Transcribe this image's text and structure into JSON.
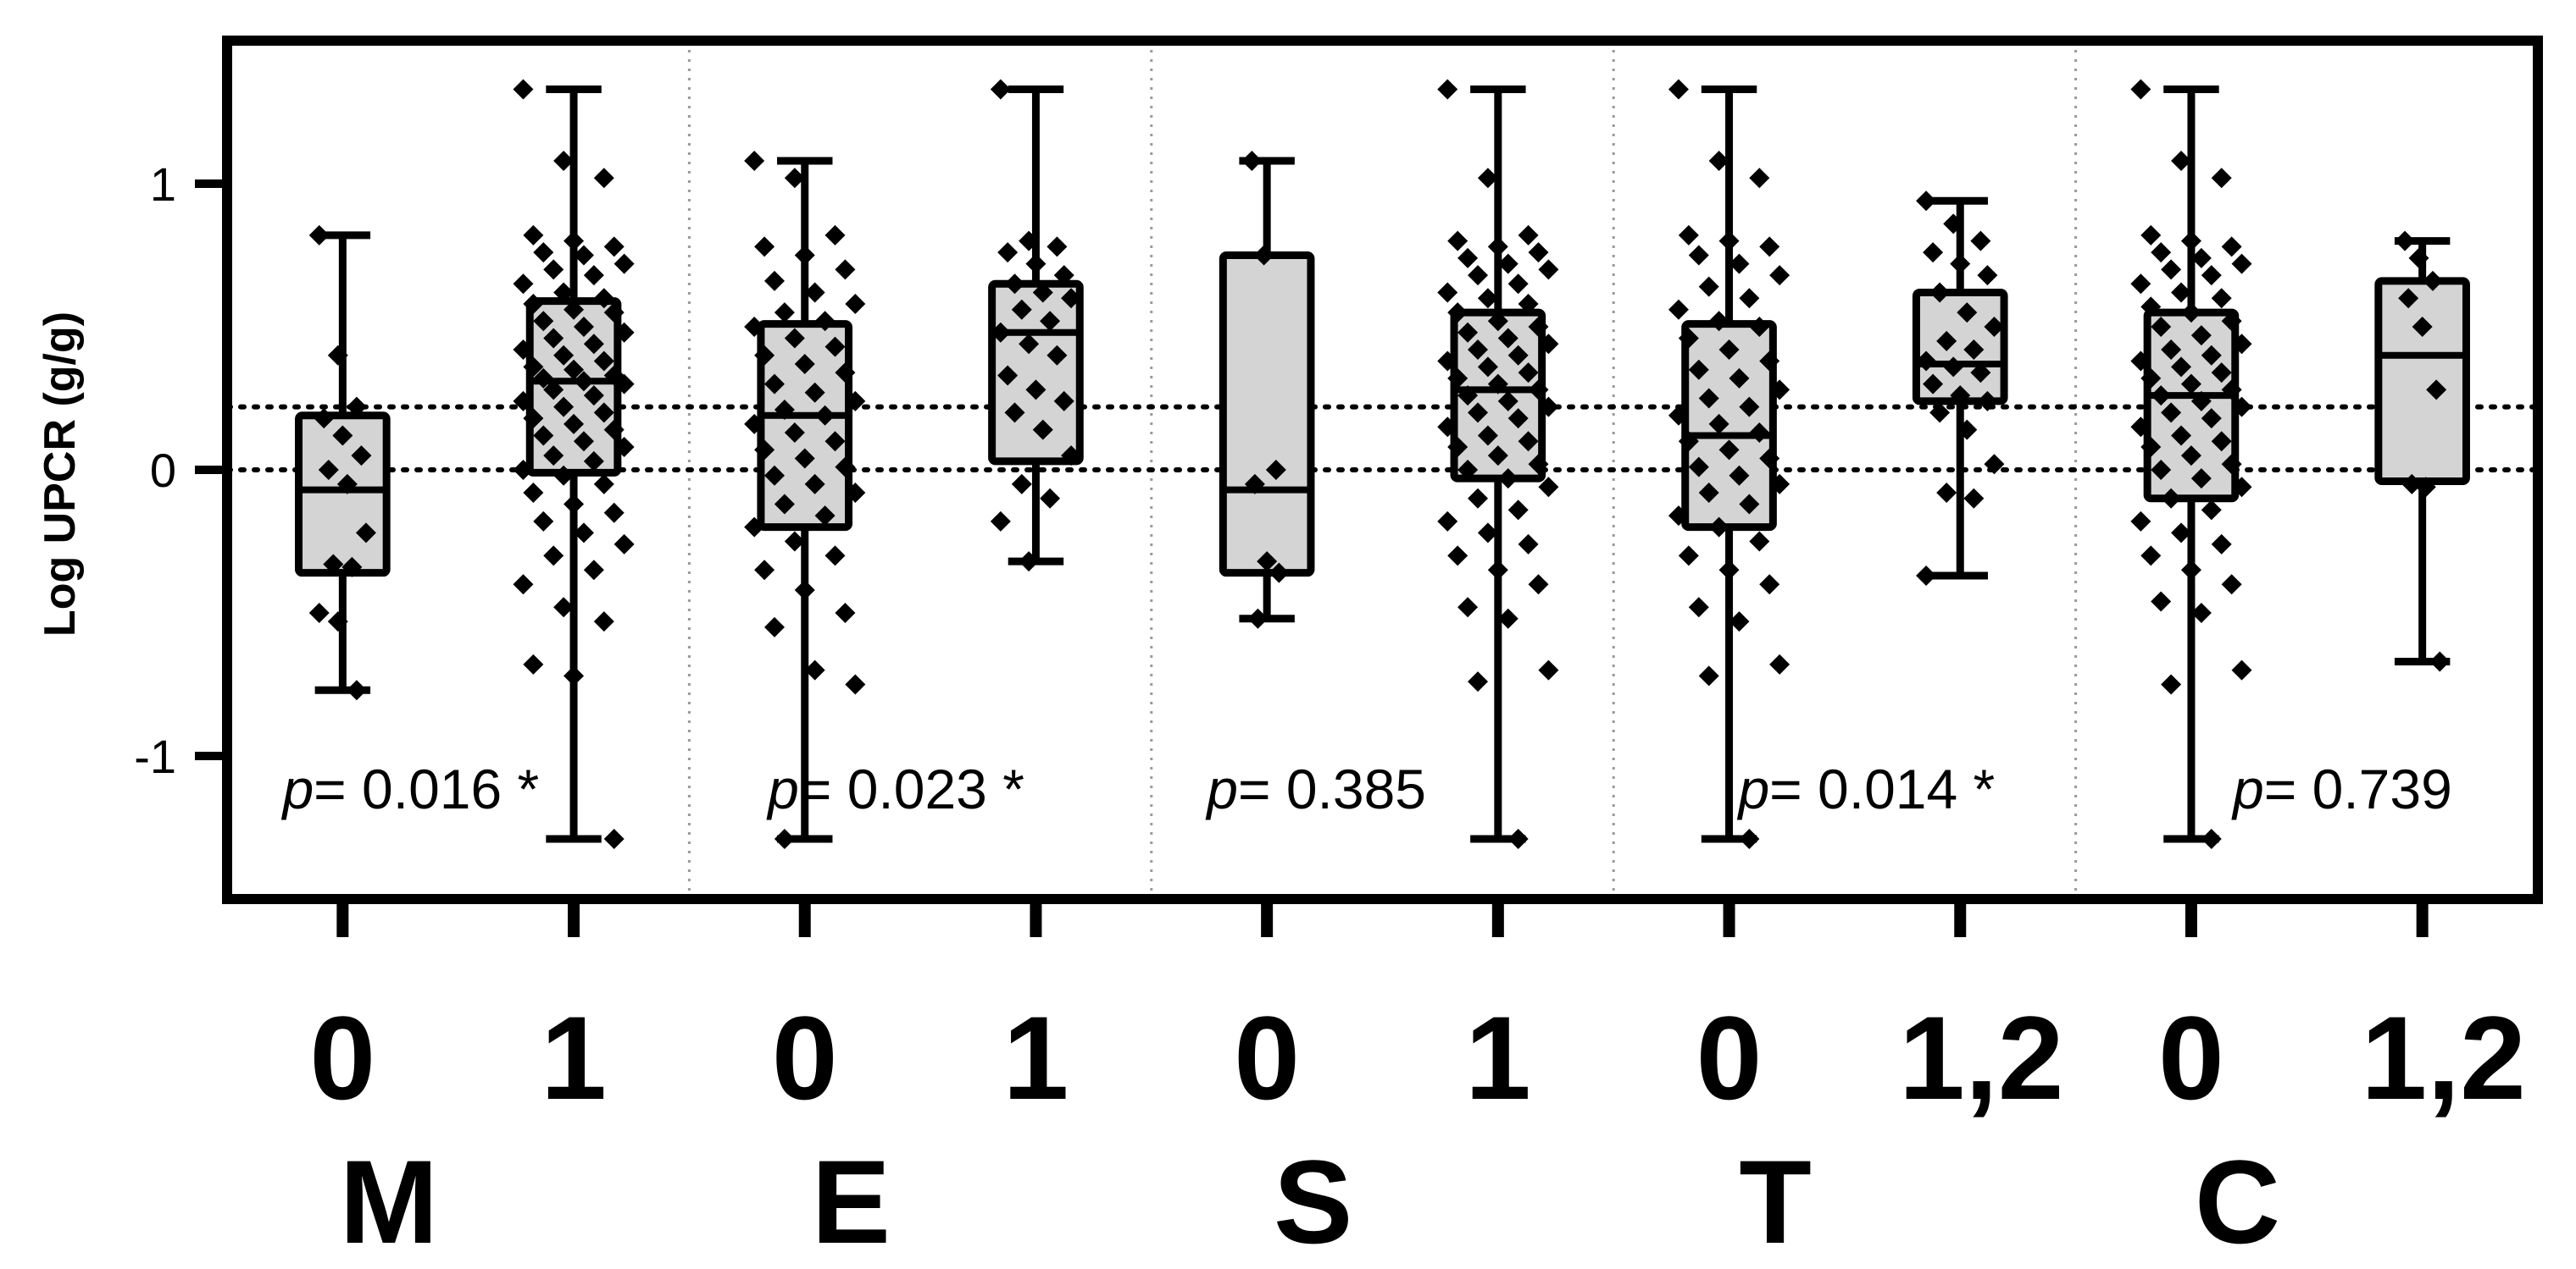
{
  "chart_data": {
    "type": "box",
    "ylabel": "Log UPCR (g/g)",
    "ylim": [
      -1.5,
      1.5
    ],
    "yticks": [
      -1,
      0,
      1
    ],
    "ytick_labels": [
      "-1",
      "0",
      "1"
    ],
    "reference_lines": [
      0,
      0.22
    ],
    "groups": [
      {
        "name": "M",
        "pvalue": "= 0.016 *",
        "boxes": [
          {
            "label": "0",
            "whisker_low": -0.77,
            "q1": -0.36,
            "median": -0.07,
            "q3": 0.19,
            "whisker_high": 0.82,
            "points": [
              0.82,
              0.4,
              0.22,
              0.18,
              0.12,
              0.05,
              0.0,
              -0.05,
              -0.22,
              -0.33,
              -0.34,
              -0.5,
              -0.53,
              -0.77
            ]
          },
          {
            "label": "1",
            "whisker_low": -1.29,
            "q1": -0.01,
            "median": 0.31,
            "q3": 0.59,
            "whisker_high": 1.33,
            "points": [
              1.33,
              1.08,
              1.02,
              0.82,
              0.8,
              0.78,
              0.76,
              0.75,
              0.72,
              0.7,
              0.68,
              0.65,
              0.62,
              0.6,
              0.58,
              0.56,
              0.55,
              0.52,
              0.5,
              0.48,
              0.46,
              0.44,
              0.42,
              0.4,
              0.38,
              0.36,
              0.35,
              0.33,
              0.32,
              0.31,
              0.3,
              0.28,
              0.26,
              0.24,
              0.22,
              0.2,
              0.18,
              0.16,
              0.14,
              0.12,
              0.1,
              0.08,
              0.05,
              0.03,
              0.0,
              -0.02,
              -0.05,
              -0.08,
              -0.12,
              -0.15,
              -0.18,
              -0.22,
              -0.26,
              -0.3,
              -0.35,
              -0.4,
              -0.48,
              -0.53,
              -0.68,
              -0.72,
              -1.29
            ]
          }
        ]
      },
      {
        "name": "E",
        "pvalue": "= 0.023 *",
        "boxes": [
          {
            "label": "0",
            "whisker_low": -1.29,
            "q1": -0.2,
            "median": 0.19,
            "q3": 0.51,
            "whisker_high": 1.08,
            "points": [
              1.08,
              1.02,
              0.82,
              0.78,
              0.75,
              0.7,
              0.66,
              0.62,
              0.58,
              0.55,
              0.52,
              0.5,
              0.46,
              0.43,
              0.4,
              0.37,
              0.34,
              0.3,
              0.27,
              0.24,
              0.21,
              0.19,
              0.16,
              0.13,
              0.1,
              0.07,
              0.04,
              0.01,
              -0.02,
              -0.05,
              -0.08,
              -0.12,
              -0.16,
              -0.2,
              -0.25,
              -0.3,
              -0.35,
              -0.42,
              -0.5,
              -0.55,
              -0.7,
              -0.75,
              -1.29
            ]
          },
          {
            "label": "1",
            "whisker_low": -0.32,
            "q1": 0.03,
            "median": 0.48,
            "q3": 0.65,
            "whisker_high": 1.33,
            "points": [
              1.33,
              0.8,
              0.78,
              0.76,
              0.72,
              0.68,
              0.65,
              0.62,
              0.6,
              0.56,
              0.52,
              0.48,
              0.44,
              0.4,
              0.33,
              0.28,
              0.24,
              0.2,
              0.14,
              0.05,
              -0.05,
              -0.1,
              -0.18,
              -0.32
            ]
          }
        ]
      },
      {
        "name": "S",
        "pvalue": "= 0.385",
        "boxes": [
          {
            "label": "0",
            "whisker_low": -0.52,
            "q1": -0.36,
            "median": -0.07,
            "q3": 0.75,
            "whisker_high": 1.08,
            "points": [
              1.08,
              0.75,
              0.0,
              -0.05,
              -0.32,
              -0.36,
              -0.52
            ]
          },
          {
            "label": "1",
            "whisker_low": -1.29,
            "q1": -0.03,
            "median": 0.28,
            "q3": 0.55,
            "whisker_high": 1.33,
            "points": [
              1.33,
              1.02,
              0.82,
              0.8,
              0.78,
              0.76,
              0.74,
              0.72,
              0.7,
              0.68,
              0.65,
              0.62,
              0.6,
              0.58,
              0.55,
              0.52,
              0.5,
              0.48,
              0.46,
              0.44,
              0.42,
              0.4,
              0.38,
              0.36,
              0.34,
              0.32,
              0.3,
              0.28,
              0.26,
              0.24,
              0.22,
              0.2,
              0.18,
              0.15,
              0.12,
              0.1,
              0.08,
              0.05,
              0.02,
              0.0,
              -0.03,
              -0.06,
              -0.1,
              -0.14,
              -0.18,
              -0.22,
              -0.26,
              -0.3,
              -0.35,
              -0.4,
              -0.48,
              -0.52,
              -0.7,
              -0.74,
              -1.29
            ]
          }
        ]
      },
      {
        "name": "T",
        "pvalue": "= 0.014 *",
        "boxes": [
          {
            "label": "0",
            "whisker_low": -1.29,
            "q1": -0.2,
            "median": 0.12,
            "q3": 0.51,
            "whisker_high": 1.33,
            "points": [
              1.33,
              1.08,
              1.02,
              0.82,
              0.8,
              0.78,
              0.75,
              0.72,
              0.68,
              0.64,
              0.6,
              0.56,
              0.52,
              0.5,
              0.46,
              0.42,
              0.38,
              0.35,
              0.32,
              0.28,
              0.25,
              0.22,
              0.19,
              0.16,
              0.13,
              0.1,
              0.07,
              0.04,
              0.01,
              -0.02,
              -0.05,
              -0.08,
              -0.12,
              -0.16,
              -0.2,
              -0.25,
              -0.3,
              -0.35,
              -0.4,
              -0.48,
              -0.53,
              -0.68,
              -0.72,
              -1.29
            ]
          },
          {
            "label": "1,2",
            "whisker_low": -0.37,
            "q1": 0.24,
            "median": 0.37,
            "q3": 0.62,
            "whisker_high": 0.94,
            "points": [
              0.94,
              0.86,
              0.8,
              0.76,
              0.72,
              0.68,
              0.62,
              0.55,
              0.5,
              0.45,
              0.42,
              0.38,
              0.36,
              0.34,
              0.3,
              0.26,
              0.24,
              0.2,
              0.14,
              0.02,
              -0.08,
              -0.1,
              -0.37
            ]
          }
        ]
      },
      {
        "name": "C",
        "pvalue": "= 0.739",
        "boxes": [
          {
            "label": "0",
            "whisker_low": -1.29,
            "q1": -0.1,
            "median": 0.26,
            "q3": 0.55,
            "whisker_high": 1.33,
            "points": [
              1.33,
              1.08,
              1.02,
              0.82,
              0.8,
              0.78,
              0.76,
              0.74,
              0.72,
              0.7,
              0.68,
              0.65,
              0.62,
              0.6,
              0.57,
              0.55,
              0.52,
              0.5,
              0.47,
              0.44,
              0.42,
              0.4,
              0.38,
              0.36,
              0.34,
              0.32,
              0.3,
              0.28,
              0.26,
              0.24,
              0.22,
              0.2,
              0.18,
              0.15,
              0.12,
              0.1,
              0.08,
              0.05,
              0.02,
              0.0,
              -0.03,
              -0.06,
              -0.1,
              -0.14,
              -0.18,
              -0.22,
              -0.26,
              -0.3,
              -0.35,
              -0.4,
              -0.46,
              -0.5,
              -0.7,
              -0.75,
              -1.29
            ]
          },
          {
            "label": "1,2",
            "whisker_low": -0.67,
            "q1": -0.04,
            "median": 0.4,
            "q3": 0.66,
            "whisker_high": 0.8,
            "points": [
              0.8,
              0.74,
              0.66,
              0.6,
              0.5,
              0.28,
              -0.05,
              -0.06,
              -0.67
            ]
          }
        ]
      }
    ]
  }
}
